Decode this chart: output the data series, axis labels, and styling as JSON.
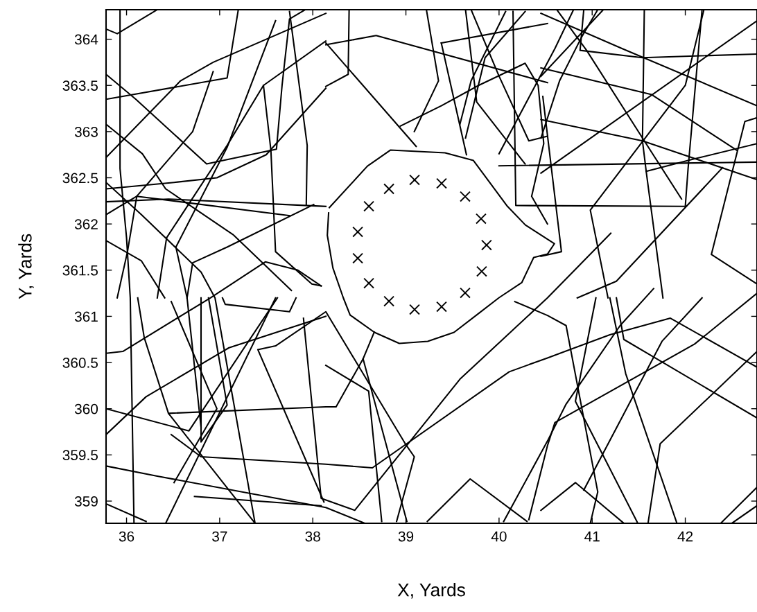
{
  "chart_data": {
    "type": "line",
    "xlabel": "X, Yards",
    "ylabel": "Y, Yards",
    "xlim": [
      35.78,
      42.77
    ],
    "ylim": [
      358.76,
      364.32
    ],
    "xticks": [
      36,
      37,
      38,
      39,
      40,
      41,
      42
    ],
    "yticks": [
      359,
      359.5,
      360,
      360.5,
      361,
      361.5,
      362,
      362.5,
      363,
      363.5,
      364
    ],
    "grid": false,
    "line_style": "solid",
    "series": [
      {
        "color": "#000000",
        "x": [
          38.178,
          38.587,
          38.833,
          39.42,
          39.725,
          40.089,
          40.283,
          40.595,
          40.52,
          40.372,
          40.245,
          40.0,
          39.777,
          39.517,
          39.234,
          38.929,
          38.662,
          38.401,
          38.327,
          38.216,
          38.156,
          38.17
        ],
        "values": [
          362.177,
          362.627,
          362.8,
          362.77,
          362.687,
          362.192,
          361.989,
          361.787,
          361.674,
          361.637,
          361.367,
          361.202,
          361.029,
          360.827,
          360.729,
          360.707,
          360.827,
          361.014,
          361.202,
          361.524,
          361.877,
          362.12
        ]
      },
      {
        "type": "scatter",
        "marker": "cross",
        "color": "#000000",
        "x": [
          39.093,
          39.383,
          39.636,
          39.807,
          39.866,
          39.814,
          39.636,
          39.383,
          39.093,
          38.818,
          38.602,
          38.483,
          38.483,
          38.602,
          38.818
        ],
        "values": [
          362.477,
          362.44,
          362.297,
          362.057,
          361.772,
          361.487,
          361.254,
          361.104,
          361.074,
          361.164,
          361.359,
          361.629,
          361.914,
          362.192,
          362.38
        ]
      },
      {
        "color": "#000000",
        "x": [
          35.78,
          35.9,
          36.33
        ],
        "values": [
          364.11,
          364.06,
          364.32
        ]
      },
      {
        "color": "#000000",
        "x": [
          35.93,
          35.93,
          36.0,
          36.04,
          36.08
        ],
        "values": [
          364.32,
          362.6,
          361.85,
          361.2,
          358.76
        ]
      },
      {
        "color": "#000000",
        "x": [
          35.78,
          37.08,
          37.2
        ],
        "values": [
          363.35,
          363.58,
          364.32
        ]
      },
      {
        "color": "#000000",
        "x": [
          35.78,
          36.1,
          36.86,
          37.61,
          37.67,
          37.75,
          37.92
        ],
        "values": [
          363.62,
          363.35,
          362.65,
          362.81,
          363.5,
          364.22,
          364.32
        ]
      },
      {
        "color": "#000000",
        "x": [
          35.78,
          36.58,
          36.93,
          38.14
        ],
        "values": [
          362.72,
          363.55,
          363.75,
          364.28
        ]
      },
      {
        "color": "#000000",
        "x": [
          35.78,
          36.17,
          36.42,
          37.15,
          37.77
        ],
        "values": [
          363.08,
          362.76,
          362.38,
          361.88,
          361.28
        ]
      },
      {
        "color": "#000000",
        "x": [
          35.78,
          36.16,
          36.8,
          36.95,
          37.38
        ],
        "values": [
          362.45,
          362.1,
          361.48,
          361.2,
          358.76
        ]
      },
      {
        "color": "#000000",
        "x": [
          35.78,
          36.45,
          38.14
        ],
        "values": [
          362.24,
          362.27,
          362.19
        ]
      },
      {
        "color": "#000000",
        "x": [
          35.78,
          36.51,
          36.97,
          37.5,
          38.14
        ],
        "values": [
          362.38,
          362.45,
          362.5,
          362.75,
          363.47
        ]
      },
      {
        "color": "#000000",
        "x": [
          35.78,
          35.91,
          36.11,
          37.75
        ],
        "values": [
          362.1,
          362.18,
          362.3,
          362.09
        ]
      },
      {
        "color": "#000000",
        "x": [
          37.47,
          37.55,
          37.6,
          37.99,
          38.09
        ],
        "values": [
          363.5,
          362.8,
          361.7,
          361.35,
          361.33
        ]
      },
      {
        "color": "#000000",
        "x": [
          37.75,
          37.94,
          37.93
        ],
        "values": [
          364.3,
          362.85,
          362.21
        ]
      },
      {
        "color": "#000000",
        "x": [
          37.6,
          37.08,
          36.53,
          36.65,
          36.8
        ],
        "values": [
          364.2,
          362.83,
          361.75,
          361.2,
          359.8
        ]
      },
      {
        "color": "#000000",
        "x": [
          36.93,
          36.71,
          36.11,
          36.01,
          35.9
        ],
        "values": [
          363.65,
          363.0,
          362.3,
          361.7,
          361.2
        ]
      },
      {
        "color": "#000000",
        "x": [
          38.14,
          37.47,
          37.08,
          36.43,
          36.33
        ],
        "values": [
          363.98,
          363.5,
          362.85,
          361.85,
          361.2
        ]
      },
      {
        "color": "#000000",
        "x": [
          38.01,
          37.08,
          36.71,
          36.65
        ],
        "values": [
          362.21,
          361.75,
          361.58,
          361.2
        ]
      },
      {
        "color": "#000000",
        "x": [
          35.78,
          36.16,
          36.41
        ],
        "values": [
          361.82,
          361.6,
          361.2
        ]
      },
      {
        "color": "#000000",
        "x": [
          38.39,
          38.38,
          38.14
        ],
        "values": [
          364.32,
          363.62,
          363.49
        ]
      },
      {
        "color": "#000000",
        "x": [
          38.14,
          38.68,
          40.52
        ],
        "values": [
          363.94,
          364.04,
          363.53
        ]
      },
      {
        "color": "#000000",
        "x": [
          38.14,
          39.11
        ],
        "values": [
          363.96,
          362.84
        ]
      },
      {
        "color": "#000000",
        "x": [
          39.22,
          39.35,
          39.09
        ],
        "values": [
          364.32,
          363.55,
          363.0
        ]
      },
      {
        "color": "#000000",
        "x": [
          39.38,
          39.65
        ],
        "values": [
          363.96,
          362.75
        ]
      },
      {
        "color": "#000000",
        "x": [
          39.38,
          40.52
        ],
        "values": [
          363.96,
          364.17
        ]
      },
      {
        "color": "#000000",
        "x": [
          39.64,
          39.76,
          40.28
        ],
        "values": [
          364.32,
          363.32,
          362.65
        ]
      },
      {
        "color": "#000000",
        "x": [
          39.7,
          40.0,
          40.32,
          40.52
        ],
        "values": [
          364.32,
          363.6,
          362.9,
          362.95
        ]
      },
      {
        "color": "#000000",
        "x": [
          38.94,
          39.38,
          39.78,
          40.28,
          40.42,
          40.48,
          40.35,
          40.52
        ],
        "values": [
          363.06,
          363.28,
          363.5,
          363.74,
          363.5,
          362.87,
          362.3,
          362.0
        ]
      },
      {
        "color": "#000000",
        "x": [
          39.58,
          39.7,
          40.07
        ],
        "values": [
          363.08,
          363.55,
          364.3
        ]
      },
      {
        "color": "#000000",
        "x": [
          39.64,
          39.85,
          40.28
        ],
        "values": [
          362.93,
          363.8,
          364.3
        ]
      },
      {
        "color": "#000000",
        "x": [
          40.15,
          40.18,
          42.0,
          42.03,
          42.18
        ],
        "values": [
          364.3,
          362.2,
          362.19,
          362.6,
          364.32
        ]
      },
      {
        "color": "#000000",
        "x": [
          40.0,
          42.77
        ],
        "values": [
          362.63,
          362.67
        ]
      },
      {
        "color": "#000000",
        "x": [
          40.0,
          40.6,
          40.8
        ],
        "values": [
          362.76,
          363.9,
          364.32
        ]
      },
      {
        "color": "#000000",
        "x": [
          40.62,
          40.94,
          41.56,
          41.96
        ],
        "values": [
          364.32,
          363.88,
          362.9,
          362.27
        ]
      },
      {
        "color": "#000000",
        "x": [
          40.91,
          40.87,
          41.54,
          42.77
        ],
        "values": [
          364.32,
          363.88,
          363.8,
          363.84
        ]
      },
      {
        "color": "#000000",
        "x": [
          40.45,
          41.64,
          42.55
        ],
        "values": [
          363.69,
          363.4,
          362.8
        ]
      },
      {
        "color": "#000000",
        "x": [
          40.45,
          41.54,
          42.77
        ],
        "values": [
          363.13,
          362.9,
          362.48
        ]
      },
      {
        "color": "#000000",
        "x": [
          41.56,
          41.54,
          41.58,
          41.76
        ],
        "values": [
          364.32,
          362.9,
          362.57,
          361.2
        ]
      },
      {
        "color": "#000000",
        "x": [
          40.45,
          41.12
        ],
        "values": [
          363.6,
          364.32
        ]
      },
      {
        "color": "#000000",
        "x": [
          40.45,
          40.65,
          40.89,
          41.06
        ],
        "values": [
          362.93,
          363.55,
          364.03,
          364.32
        ]
      },
      {
        "color": "#000000",
        "x": [
          40.47,
          40.67,
          40.45
        ],
        "values": [
          363.38,
          361.7,
          361.65
        ]
      },
      {
        "color": "#000000",
        "x": [
          41.17,
          40.98,
          42.0,
          42.2
        ],
        "values": [
          361.2,
          362.15,
          363.5,
          364.32
        ]
      },
      {
        "color": "#000000",
        "x": [
          42.77,
          40.45
        ],
        "values": [
          364.2,
          362.55
        ]
      },
      {
        "color": "#000000",
        "x": [
          40.45,
          41.32,
          42.77
        ],
        "values": [
          364.28,
          363.9,
          363.28
        ]
      },
      {
        "color": "#000000",
        "x": [
          42.77,
          42.64,
          42.28,
          42.77
        ],
        "values": [
          363.15,
          363.11,
          361.67,
          361.35
        ]
      },
      {
        "color": "#000000",
        "x": [
          42.77,
          42.08,
          41.58
        ],
        "values": [
          362.87,
          362.7,
          362.57
        ]
      },
      {
        "color": "#000000",
        "x": [
          42.4,
          41.26,
          40.84
        ],
        "values": [
          362.61,
          361.38,
          361.2
        ]
      },
      {
        "color": "#000000",
        "x": [
          35.78,
          36.67,
          37.62
        ],
        "values": [
          360.0,
          359.76,
          361.2
        ]
      },
      {
        "color": "#000000",
        "x": [
          35.78,
          36.21,
          37.1,
          38.14
        ],
        "values": [
          359.72,
          360.13,
          360.66,
          361.0
        ]
      },
      {
        "color": "#000000",
        "x": [
          35.78,
          35.96,
          36.9,
          37.49,
          37.84,
          38.09
        ],
        "values": [
          360.6,
          360.62,
          361.2,
          361.59,
          361.5,
          361.33
        ]
      },
      {
        "color": "#000000",
        "x": [
          35.78,
          36.33,
          38.14,
          38.56
        ],
        "values": [
          359.38,
          359.27,
          358.93,
          358.76
        ]
      },
      {
        "color": "#000000",
        "x": [
          35.78,
          36.21
        ],
        "values": [
          358.97,
          358.78
        ]
      },
      {
        "color": "#000000",
        "x": [
          36.45,
          38.14,
          38.25,
          38.54,
          38.66
        ],
        "values": [
          359.95,
          360.02,
          360.02,
          360.54,
          360.83
        ]
      },
      {
        "color": "#000000",
        "x": [
          36.8,
          36.8,
          37.08,
          36.88
        ],
        "values": [
          361.2,
          359.64,
          360.04,
          361.2
        ]
      },
      {
        "color": "#000000",
        "x": [
          38.12,
          37.41,
          37.6,
          38.14,
          39.0,
          39.09,
          38.9
        ],
        "values": [
          358.99,
          360.64,
          360.68,
          361.05,
          359.61,
          359.48,
          358.78
        ]
      },
      {
        "color": "#000000",
        "x": [
          37.9,
          38.09,
          38.45,
          39.58,
          40.52,
          41.2
        ],
        "values": [
          360.98,
          359.03,
          358.9,
          360.32,
          361.2,
          361.9
        ]
      },
      {
        "color": "#000000",
        "x": [
          37.03,
          37.06,
          37.75,
          37.82
        ],
        "values": [
          361.2,
          361.13,
          361.05,
          361.2
        ]
      },
      {
        "color": "#000000",
        "x": [
          36.48,
          36.97,
          36.51
        ],
        "values": [
          361.16,
          360.0,
          359.2
        ]
      },
      {
        "color": "#000000",
        "x": [
          36.73,
          38.09
        ],
        "values": [
          359.05,
          358.95
        ]
      },
      {
        "color": "#000000",
        "x": [
          36.42,
          37.6
        ],
        "values": [
          358.76,
          361.2
        ]
      },
      {
        "color": "#000000",
        "x": [
          36.12,
          36.19,
          36.45,
          37.38
        ],
        "values": [
          361.2,
          360.77,
          359.95,
          358.76
        ]
      },
      {
        "color": "#000000",
        "x": [
          38.14,
          38.6,
          38.74
        ],
        "values": [
          360.47,
          360.19,
          358.78
        ]
      },
      {
        "color": "#000000",
        "x": [
          38.54,
          39.01
        ],
        "values": [
          360.54,
          358.78
        ]
      },
      {
        "color": "#000000",
        "x": [
          36.48,
          36.8,
          38.14,
          38.64,
          40.11,
          40.52,
          41.19,
          41.84,
          42.77
        ],
        "values": [
          359.72,
          359.48,
          359.4,
          359.36,
          360.4,
          360.55,
          360.8,
          360.98,
          360.45
        ]
      },
      {
        "color": "#000000",
        "x": [
          39.23,
          39.69,
          40.3
        ],
        "values": [
          358.78,
          359.24,
          358.78
        ]
      },
      {
        "color": "#000000",
        "x": [
          40.05,
          40.52,
          40.72,
          41.3,
          41.66
        ],
        "values": [
          358.78,
          359.65,
          360.05,
          360.9,
          361.3
        ]
      },
      {
        "color": "#000000",
        "x": [
          40.32,
          40.52,
          40.6,
          42.1,
          42.77
        ],
        "values": [
          358.8,
          359.6,
          359.85,
          360.7,
          361.25
        ]
      },
      {
        "color": "#000000",
        "x": [
          40.17,
          40.52,
          40.72,
          41.06,
          40.98
        ],
        "values": [
          361.16,
          361.01,
          360.9,
          359.1,
          358.76
        ]
      },
      {
        "color": "#000000",
        "x": [
          40.45,
          40.82,
          41.34
        ],
        "values": [
          358.9,
          359.2,
          358.76
        ]
      },
      {
        "color": "#000000",
        "x": [
          41.19,
          41.36,
          41.91
        ],
        "values": [
          361.2,
          360.38,
          358.76
        ]
      },
      {
        "color": "#000000",
        "x": [
          41.04,
          40.82,
          41.49
        ],
        "values": [
          361.2,
          360.08,
          358.76
        ]
      },
      {
        "color": "#000000",
        "x": [
          41.6,
          41.73,
          42.77
        ],
        "values": [
          358.76,
          359.62,
          360.62
        ]
      },
      {
        "color": "#000000",
        "x": [
          42.38,
          42.77
        ],
        "values": [
          358.76,
          359.15
        ]
      },
      {
        "color": "#000000",
        "x": [
          42.5,
          42.77
        ],
        "values": [
          358.76,
          358.95
        ]
      },
      {
        "color": "#000000",
        "x": [
          40.91,
          41.75,
          42.18
        ],
        "values": [
          359.12,
          360.73,
          361.2
        ]
      },
      {
        "color": "#000000",
        "x": [
          41.26,
          41.34,
          42.77
        ],
        "values": [
          361.2,
          360.75,
          359.9
        ]
      }
    ]
  }
}
